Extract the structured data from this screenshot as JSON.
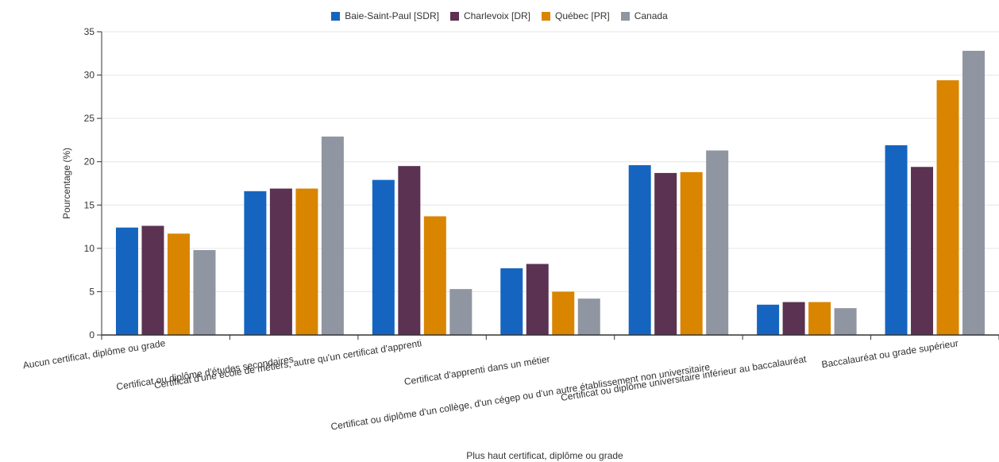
{
  "chart_data": {
    "type": "bar",
    "title": "",
    "xlabel": "Plus haut certificat, diplôme ou grade",
    "ylabel": "Pourcentage (%)",
    "ylim": [
      0,
      35
    ],
    "yticks": [
      "0",
      "5",
      "10",
      "15",
      "20",
      "25",
      "30",
      "35"
    ],
    "grid": "horizontal",
    "legend_position": "top-center",
    "categories": [
      "Aucun certificat, diplôme ou grade",
      "Certificat ou diplôme d'études secondaires",
      "Certificat d'une école de métiers, autre qu'un certificat d'apprenti",
      "Certificat d'apprenti dans un métier",
      "Certificat ou diplôme d'un collège, d'un cégep ou d'un autre établissement non universitaire",
      "Certificat ou diplôme universitaire inférieur au baccalauréat",
      "Baccalauréat ou grade supérieur"
    ],
    "series": [
      {
        "name": "Baie-Saint-Paul [SDR]",
        "color": "#1565c0",
        "values": [
          12.4,
          16.6,
          17.9,
          7.7,
          19.6,
          3.5,
          21.9
        ]
      },
      {
        "name": "Charlevoix [DR]",
        "color": "#5b3251",
        "values": [
          12.6,
          16.9,
          19.5,
          8.2,
          18.7,
          3.8,
          19.4
        ]
      },
      {
        "name": "Québec [PR]",
        "color": "#d98500",
        "values": [
          11.7,
          16.9,
          13.7,
          5.0,
          18.8,
          3.8,
          29.4
        ]
      },
      {
        "name": "Canada",
        "color": "#8f95a1",
        "values": [
          9.8,
          22.9,
          5.3,
          4.2,
          21.3,
          3.1,
          32.8
        ]
      }
    ]
  }
}
